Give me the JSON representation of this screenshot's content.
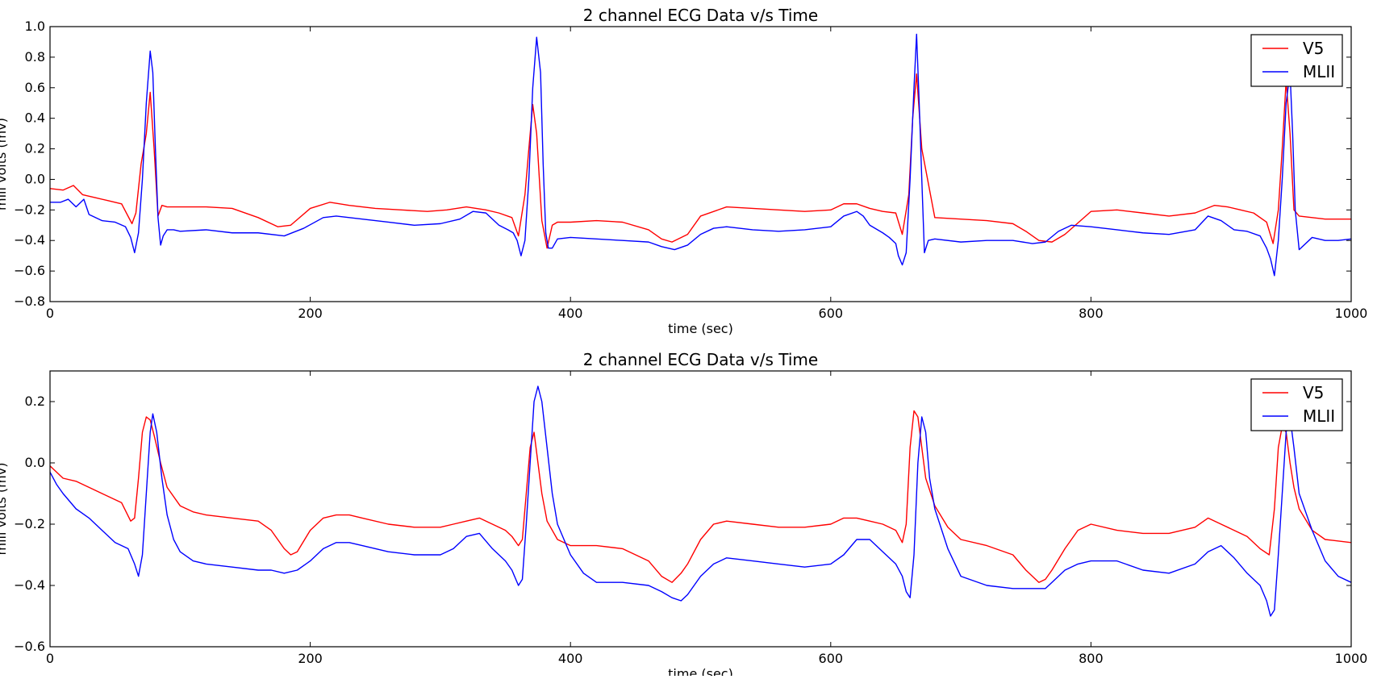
{
  "chart_data": [
    {
      "type": "line",
      "title": "2 channel ECG Data v/s Time",
      "xlabel": "time (sec)",
      "ylabel": "mill volts (mv)",
      "xlim": [
        0,
        1000
      ],
      "ylim": [
        -0.8,
        1.0
      ],
      "xticks": [
        0,
        200,
        400,
        600,
        800,
        1000
      ],
      "yticks": [
        -0.8,
        -0.6,
        -0.4,
        -0.2,
        0.0,
        0.2,
        0.4,
        0.6,
        0.8,
        1.0
      ],
      "grid": false,
      "legend": "top-right",
      "series": [
        {
          "name": "V5",
          "color": "#ff0000",
          "x": [
            0,
            10,
            18,
            25,
            35,
            45,
            55,
            63,
            66,
            70,
            74,
            77,
            80,
            83,
            86,
            90,
            100,
            120,
            140,
            160,
            175,
            185,
            200,
            215,
            230,
            250,
            270,
            290,
            305,
            320,
            335,
            345,
            355,
            360,
            365,
            368,
            371,
            374,
            378,
            382,
            386,
            390,
            400,
            420,
            440,
            460,
            470,
            478,
            490,
            500,
            520,
            540,
            560,
            580,
            600,
            610,
            620,
            630,
            640,
            650,
            655,
            660,
            663,
            666,
            670,
            680,
            700,
            720,
            740,
            750,
            760,
            770,
            780,
            800,
            820,
            840,
            860,
            880,
            895,
            905,
            915,
            925,
            935,
            940,
            944,
            947,
            950,
            953,
            956,
            960,
            970,
            980,
            990,
            1000
          ],
          "values": [
            -0.06,
            -0.07,
            -0.04,
            -0.1,
            -0.12,
            -0.14,
            -0.16,
            -0.29,
            -0.22,
            0.1,
            0.3,
            0.57,
            0.2,
            -0.24,
            -0.17,
            -0.18,
            -0.18,
            -0.18,
            -0.19,
            -0.25,
            -0.31,
            -0.3,
            -0.19,
            -0.15,
            -0.17,
            -0.19,
            -0.2,
            -0.21,
            -0.2,
            -0.18,
            -0.2,
            -0.22,
            -0.25,
            -0.37,
            -0.1,
            0.2,
            0.49,
            0.3,
            -0.27,
            -0.45,
            -0.3,
            -0.28,
            -0.28,
            -0.27,
            -0.28,
            -0.33,
            -0.39,
            -0.41,
            -0.36,
            -0.24,
            -0.18,
            -0.19,
            -0.2,
            -0.21,
            -0.2,
            -0.16,
            -0.16,
            -0.19,
            -0.21,
            -0.22,
            -0.36,
            -0.1,
            0.4,
            0.69,
            0.2,
            -0.25,
            -0.26,
            -0.27,
            -0.29,
            -0.34,
            -0.4,
            -0.41,
            -0.36,
            -0.21,
            -0.2,
            -0.22,
            -0.24,
            -0.22,
            -0.17,
            -0.18,
            -0.2,
            -0.22,
            -0.28,
            -0.42,
            -0.2,
            0.2,
            0.65,
            0.3,
            -0.2,
            -0.24,
            -0.25,
            -0.26,
            -0.26,
            -0.26
          ]
        },
        {
          "name": "MLII",
          "color": "#0000ff",
          "x": [
            0,
            8,
            14,
            20,
            26,
            30,
            40,
            50,
            58,
            62,
            65,
            68,
            71,
            74,
            77,
            79,
            81,
            83,
            85,
            87,
            90,
            95,
            100,
            120,
            140,
            160,
            180,
            195,
            210,
            220,
            240,
            260,
            280,
            300,
            315,
            325,
            335,
            345,
            352,
            356,
            359,
            362,
            365,
            368,
            371,
            374,
            377,
            379,
            381,
            383,
            386,
            390,
            400,
            420,
            440,
            460,
            470,
            480,
            490,
            500,
            510,
            520,
            540,
            560,
            580,
            600,
            610,
            620,
            625,
            630,
            640,
            645,
            650,
            652,
            655,
            658,
            661,
            664,
            666,
            668,
            670,
            672,
            675,
            680,
            700,
            720,
            740,
            755,
            765,
            775,
            785,
            800,
            820,
            840,
            860,
            880,
            890,
            900,
            910,
            920,
            930,
            935,
            938,
            941,
            944,
            947,
            950,
            953,
            955,
            957,
            960,
            970,
            980,
            990,
            1000
          ],
          "values": [
            -0.15,
            -0.15,
            -0.13,
            -0.18,
            -0.13,
            -0.23,
            -0.27,
            -0.28,
            -0.31,
            -0.38,
            -0.48,
            -0.35,
            0.0,
            0.5,
            0.84,
            0.7,
            0.2,
            -0.25,
            -0.43,
            -0.37,
            -0.33,
            -0.33,
            -0.34,
            -0.33,
            -0.35,
            -0.35,
            -0.37,
            -0.32,
            -0.25,
            -0.24,
            -0.26,
            -0.28,
            -0.3,
            -0.29,
            -0.26,
            -0.21,
            -0.22,
            -0.3,
            -0.33,
            -0.35,
            -0.4,
            -0.5,
            -0.4,
            0.0,
            0.6,
            0.93,
            0.7,
            0.1,
            -0.35,
            -0.45,
            -0.45,
            -0.39,
            -0.38,
            -0.39,
            -0.4,
            -0.41,
            -0.44,
            -0.46,
            -0.43,
            -0.36,
            -0.32,
            -0.31,
            -0.33,
            -0.34,
            -0.33,
            -0.31,
            -0.24,
            -0.21,
            -0.24,
            -0.3,
            -0.35,
            -0.38,
            -0.42,
            -0.5,
            -0.56,
            -0.48,
            0.0,
            0.6,
            0.95,
            0.5,
            0.0,
            -0.48,
            -0.4,
            -0.39,
            -0.41,
            -0.4,
            -0.4,
            -0.42,
            -0.41,
            -0.34,
            -0.3,
            -0.31,
            -0.33,
            -0.35,
            -0.36,
            -0.33,
            -0.24,
            -0.27,
            -0.33,
            -0.34,
            -0.37,
            -0.45,
            -0.52,
            -0.63,
            -0.4,
            0.0,
            0.5,
            0.7,
            0.3,
            -0.2,
            -0.46,
            -0.38,
            -0.4,
            -0.4,
            -0.39
          ]
        }
      ]
    },
    {
      "type": "line",
      "title": "2 channel ECG Data v/s Time",
      "xlabel": "time (sec)",
      "ylabel": "mill volts (mv)",
      "xlim": [
        0,
        1000
      ],
      "ylim": [
        -0.6,
        0.3
      ],
      "xticks": [
        0,
        200,
        400,
        600,
        800,
        1000
      ],
      "yticks": [
        -0.6,
        -0.4,
        -0.2,
        0.0,
        0.2
      ],
      "grid": false,
      "legend": "top-right",
      "series": [
        {
          "name": "V5",
          "color": "#ff0000",
          "x": [
            0,
            10,
            20,
            30,
            40,
            55,
            62,
            65,
            68,
            71,
            74,
            77,
            80,
            85,
            90,
            100,
            110,
            120,
            140,
            160,
            170,
            180,
            185,
            190,
            200,
            210,
            220,
            230,
            240,
            260,
            280,
            300,
            310,
            320,
            330,
            340,
            350,
            355,
            360,
            363,
            366,
            369,
            372,
            375,
            378,
            382,
            390,
            400,
            420,
            440,
            460,
            470,
            478,
            485,
            490,
            500,
            510,
            520,
            540,
            560,
            580,
            600,
            610,
            620,
            630,
            640,
            650,
            655,
            658,
            661,
            664,
            667,
            670,
            673,
            680,
            690,
            700,
            720,
            740,
            750,
            760,
            765,
            770,
            780,
            790,
            800,
            820,
            840,
            860,
            880,
            890,
            900,
            910,
            920,
            930,
            937,
            941,
            944,
            947,
            950,
            953,
            956,
            960,
            970,
            980,
            1000
          ],
          "values": [
            -0.01,
            -0.05,
            -0.06,
            -0.08,
            -0.1,
            -0.13,
            -0.19,
            -0.18,
            -0.05,
            0.1,
            0.15,
            0.14,
            0.09,
            0.0,
            -0.08,
            -0.14,
            -0.16,
            -0.17,
            -0.18,
            -0.19,
            -0.22,
            -0.28,
            -0.3,
            -0.29,
            -0.22,
            -0.18,
            -0.17,
            -0.17,
            -0.18,
            -0.2,
            -0.21,
            -0.21,
            -0.2,
            -0.19,
            -0.18,
            -0.2,
            -0.22,
            -0.24,
            -0.27,
            -0.25,
            -0.1,
            0.05,
            0.1,
            0.0,
            -0.1,
            -0.19,
            -0.25,
            -0.27,
            -0.27,
            -0.28,
            -0.32,
            -0.37,
            -0.39,
            -0.36,
            -0.33,
            -0.25,
            -0.2,
            -0.19,
            -0.2,
            -0.21,
            -0.21,
            -0.2,
            -0.18,
            -0.18,
            -0.19,
            -0.2,
            -0.22,
            -0.26,
            -0.2,
            0.05,
            0.17,
            0.15,
            0.05,
            -0.05,
            -0.14,
            -0.21,
            -0.25,
            -0.27,
            -0.3,
            -0.35,
            -0.39,
            -0.38,
            -0.35,
            -0.28,
            -0.22,
            -0.2,
            -0.22,
            -0.23,
            -0.23,
            -0.21,
            -0.18,
            -0.2,
            -0.22,
            -0.24,
            -0.28,
            -0.3,
            -0.15,
            0.05,
            0.12,
            0.1,
            0.0,
            -0.08,
            -0.15,
            -0.22,
            -0.25,
            -0.26
          ]
        },
        {
          "name": "MLII",
          "color": "#0000ff",
          "x": [
            0,
            5,
            10,
            20,
            30,
            40,
            50,
            60,
            65,
            68,
            71,
            74,
            77,
            79,
            82,
            86,
            90,
            95,
            100,
            110,
            120,
            140,
            160,
            170,
            180,
            190,
            200,
            210,
            220,
            230,
            240,
            260,
            280,
            300,
            310,
            320,
            330,
            340,
            350,
            355,
            360,
            363,
            366,
            369,
            372,
            375,
            378,
            382,
            386,
            390,
            400,
            410,
            420,
            440,
            460,
            470,
            478,
            485,
            490,
            500,
            510,
            520,
            540,
            560,
            580,
            600,
            610,
            620,
            630,
            640,
            650,
            655,
            658,
            661,
            664,
            667,
            670,
            673,
            676,
            680,
            690,
            700,
            720,
            740,
            760,
            765,
            770,
            780,
            790,
            800,
            820,
            840,
            860,
            880,
            890,
            900,
            910,
            920,
            930,
            935,
            938,
            941,
            944,
            947,
            950,
            953,
            956,
            960,
            970,
            980,
            990,
            1000
          ],
          "values": [
            -0.03,
            -0.07,
            -0.1,
            -0.15,
            -0.18,
            -0.22,
            -0.26,
            -0.28,
            -0.33,
            -0.37,
            -0.3,
            -0.1,
            0.1,
            0.16,
            0.1,
            -0.05,
            -0.17,
            -0.25,
            -0.29,
            -0.32,
            -0.33,
            -0.34,
            -0.35,
            -0.35,
            -0.36,
            -0.35,
            -0.32,
            -0.28,
            -0.26,
            -0.26,
            -0.27,
            -0.29,
            -0.3,
            -0.3,
            -0.28,
            -0.24,
            -0.23,
            -0.28,
            -0.32,
            -0.35,
            -0.4,
            -0.38,
            -0.2,
            0.0,
            0.2,
            0.25,
            0.2,
            0.05,
            -0.1,
            -0.2,
            -0.3,
            -0.36,
            -0.39,
            -0.39,
            -0.4,
            -0.42,
            -0.44,
            -0.45,
            -0.43,
            -0.37,
            -0.33,
            -0.31,
            -0.32,
            -0.33,
            -0.34,
            -0.33,
            -0.3,
            -0.25,
            -0.25,
            -0.29,
            -0.33,
            -0.37,
            -0.42,
            -0.44,
            -0.3,
            0.0,
            0.15,
            0.1,
            -0.05,
            -0.15,
            -0.28,
            -0.37,
            -0.4,
            -0.41,
            -0.41,
            -0.41,
            -0.39,
            -0.35,
            -0.33,
            -0.32,
            -0.32,
            -0.35,
            -0.36,
            -0.33,
            -0.29,
            -0.27,
            -0.31,
            -0.36,
            -0.4,
            -0.45,
            -0.5,
            -0.48,
            -0.3,
            -0.1,
            0.1,
            0.15,
            0.05,
            -0.1,
            -0.22,
            -0.32,
            -0.37,
            -0.39
          ]
        }
      ]
    }
  ]
}
